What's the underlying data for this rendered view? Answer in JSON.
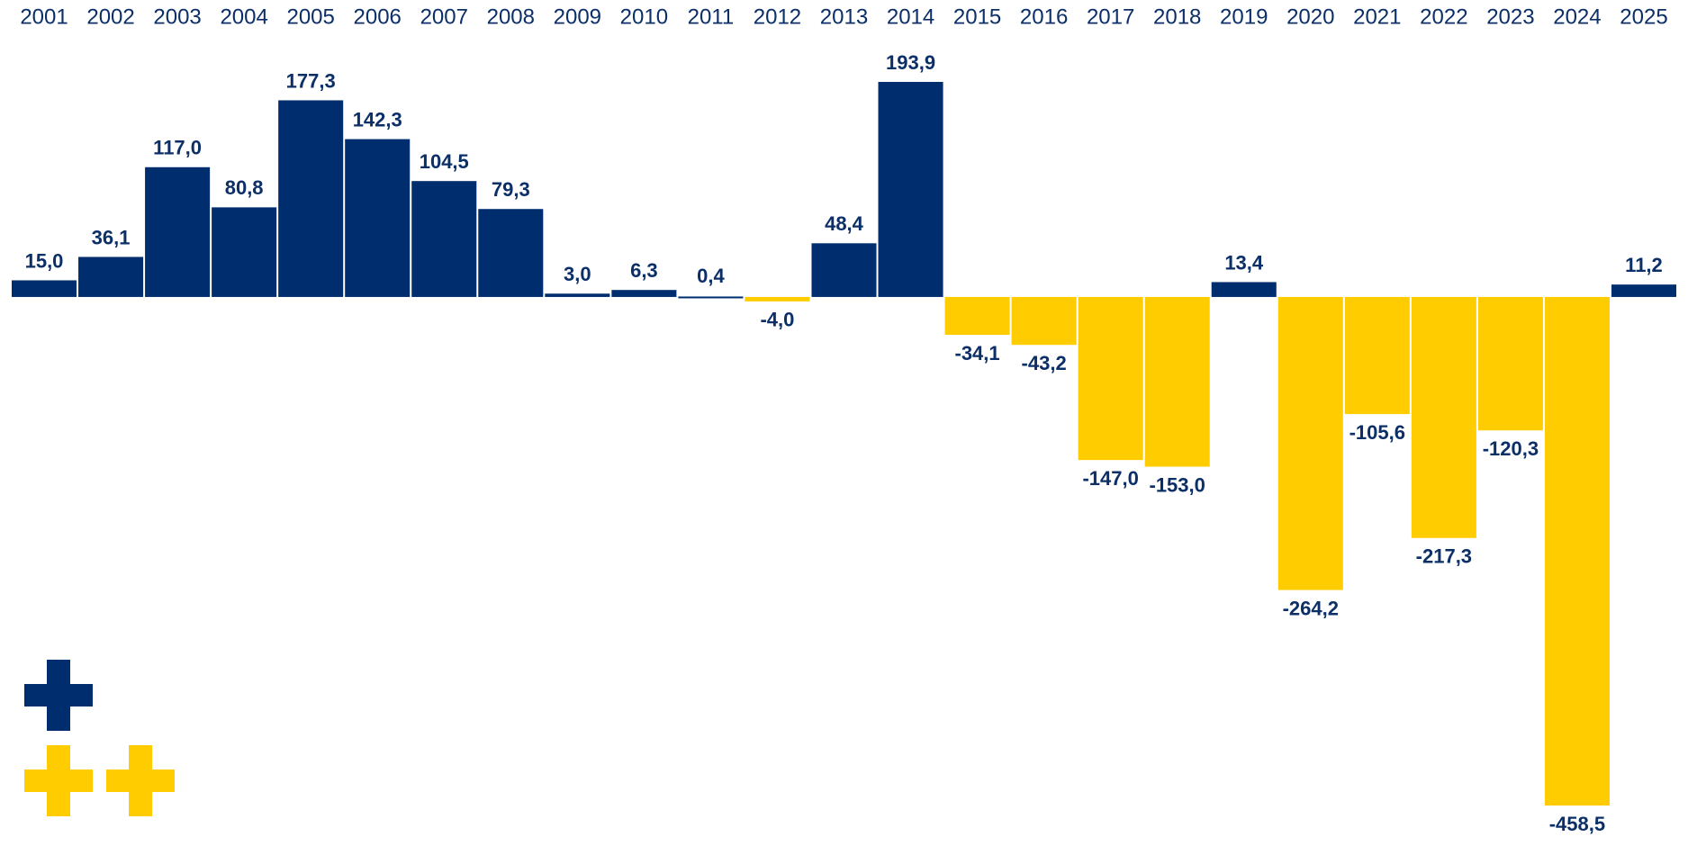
{
  "chart_data": {
    "type": "bar",
    "categories": [
      "2001",
      "2002",
      "2003",
      "2004",
      "2005",
      "2006",
      "2007",
      "2008",
      "2009",
      "2010",
      "2011",
      "2012",
      "2013",
      "2014",
      "2015",
      "2016",
      "2017",
      "2018",
      "2019",
      "2020",
      "2021",
      "2022",
      "2023",
      "2024",
      "2025"
    ],
    "values": [
      15.0,
      36.1,
      117.0,
      80.8,
      177.3,
      142.3,
      104.5,
      79.3,
      3.0,
      6.3,
      0.4,
      -4.0,
      48.4,
      193.9,
      -34.1,
      -43.2,
      -147.0,
      -153.0,
      13.4,
      -264.2,
      -105.6,
      -217.3,
      -120.3,
      -458.5,
      11.2
    ],
    "value_labels": [
      "15,0",
      "36,1",
      "117,0",
      "80,8",
      "177,3",
      "142,3",
      "104,5",
      "79,3",
      "3,0",
      "6,3",
      "0,4",
      "-4,0",
      "48,4",
      "193,9",
      "-34,1",
      "-43,2",
      "-147,0",
      "-153,0",
      "13,4",
      "-264,2",
      "-105,6",
      "-217,3",
      "-120,3",
      "-458,5",
      "11,2"
    ],
    "color": "#002d6e",
    "negative_color": "#ffcc00"
  }
}
